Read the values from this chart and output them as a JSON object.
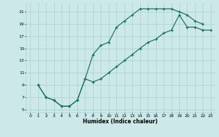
{
  "xlabel": "Humidex (Indice chaleur)",
  "bg_color": "#cce8e8",
  "grid_color": "#aad4d4",
  "line_color": "#1a7060",
  "xlim": [
    -0.5,
    23.5
  ],
  "ylim": [
    4.5,
    22.5
  ],
  "xticks": [
    0,
    1,
    2,
    3,
    4,
    5,
    6,
    7,
    8,
    9,
    10,
    11,
    12,
    13,
    14,
    15,
    16,
    17,
    18,
    19,
    20,
    21,
    22,
    23
  ],
  "yticks": [
    5,
    7,
    9,
    11,
    13,
    15,
    17,
    19,
    21
  ],
  "line1_x": [
    1,
    2,
    3,
    4,
    5,
    6,
    7,
    8,
    9,
    10,
    11,
    12,
    13,
    14,
    15,
    16,
    17,
    18,
    19,
    20,
    21,
    22
  ],
  "line1_y": [
    9,
    7,
    6.5,
    5.5,
    5.5,
    6.5,
    10,
    14,
    15.5,
    16,
    18.5,
    19.5,
    20.5,
    21.5,
    21.5,
    21.5,
    21.5,
    21.5,
    21.0,
    20.5,
    19.5,
    19.0
  ],
  "line2_x": [
    1,
    2,
    3,
    4,
    5,
    6,
    7,
    8,
    9,
    10,
    11,
    12,
    13,
    14,
    15,
    16,
    17,
    18,
    19,
    20,
    21,
    22,
    23
  ],
  "line2_y": [
    9,
    7,
    6.5,
    5.5,
    5.5,
    6.5,
    10,
    9.5,
    10,
    11,
    12,
    13,
    14,
    15,
    16,
    16.5,
    17.5,
    18.0,
    20.5,
    18.5,
    18.5,
    18.0,
    18.0
  ]
}
